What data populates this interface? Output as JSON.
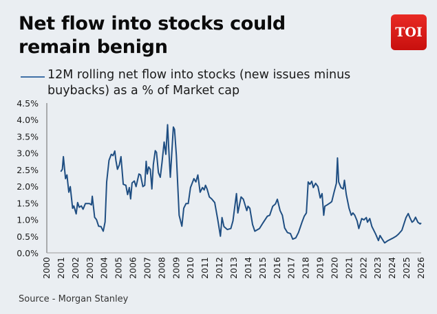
{
  "title": "Net flow into stocks could remain benign",
  "logo": "TOI",
  "source": "Source - Morgan Stanley",
  "colors": {
    "line": "#1f4e82",
    "legend": "#3f6fa6",
    "background": "#eaeef2",
    "logo": "#d9181a"
  },
  "chart_data": {
    "type": "line",
    "title": "Net flow into stocks could remain benign",
    "legend_placement": "top",
    "grid": false,
    "xlim": [
      2000,
      2026
    ],
    "ylim": [
      0,
      4.5
    ],
    "x_ticks": [
      "2000",
      "2001",
      "2002",
      "2003",
      "2004",
      "2005",
      "2006",
      "2007",
      "2008",
      "2009",
      "2010",
      "2011",
      "2012",
      "2013",
      "2014",
      "2015",
      "2016",
      "2017",
      "2018",
      "2019",
      "2020",
      "2021",
      "2022",
      "2023",
      "2024",
      "2025",
      "2026"
    ],
    "y_ticks": [
      "0.0%",
      "0.5%",
      "1.0%",
      "1.5%",
      "2.0%",
      "2.5%",
      "3.0%",
      "3.5%",
      "4.0%",
      "4.5%"
    ],
    "series": [
      {
        "name": "12M rolling net flow into stocks (new issues minus buybacks) as a % of Market cap",
        "x": [
          2000.97,
          2001.08,
          2001.15,
          2001.3,
          2001.4,
          2001.53,
          2001.63,
          2001.79,
          2001.88,
          2002.04,
          2002.14,
          2002.25,
          2002.4,
          2002.52,
          2002.68,
          2002.97,
          2003.1,
          2003.16,
          2003.32,
          2003.45,
          2003.6,
          2003.76,
          2003.92,
          2004.05,
          2004.16,
          2004.32,
          2004.48,
          2004.6,
          2004.72,
          2004.8,
          2004.91,
          2005.04,
          2005.15,
          2005.31,
          2005.49,
          2005.61,
          2005.73,
          2005.82,
          2005.92,
          2006.08,
          2006.2,
          2006.4,
          2006.51,
          2006.67,
          2006.8,
          2006.9,
          2006.98,
          2007.08,
          2007.19,
          2007.3,
          2007.4,
          2007.53,
          2007.62,
          2007.75,
          2007.88,
          2008.0,
          2008.15,
          2008.27,
          2008.39,
          2008.47,
          2008.58,
          2008.7,
          2008.79,
          2008.87,
          2009.0,
          2009.19,
          2009.38,
          2009.51,
          2009.67,
          2009.82,
          2009.98,
          2010.22,
          2010.35,
          2010.49,
          2010.65,
          2010.81,
          2010.93,
          2011.02,
          2011.13,
          2011.29,
          2011.45,
          2011.66,
          2011.87,
          2012.06,
          2012.17,
          2012.3,
          2012.54,
          2012.78,
          2012.93,
          2013.17,
          2013.27,
          2013.49,
          2013.65,
          2013.89,
          2013.97,
          2014.1,
          2014.29,
          2014.45,
          2014.77,
          2015.0,
          2015.32,
          2015.48,
          2015.69,
          2015.88,
          2016.01,
          2016.2,
          2016.36,
          2016.52,
          2016.71,
          2016.92,
          2017.08,
          2017.29,
          2017.48,
          2017.72,
          2017.88,
          2018.03,
          2018.15,
          2018.27,
          2018.4,
          2018.51,
          2018.67,
          2018.83,
          2018.99,
          2019.12,
          2019.23,
          2019.31,
          2019.47,
          2019.71,
          2019.79,
          2019.95,
          2020.11,
          2020.19,
          2020.27,
          2020.43,
          2020.59,
          2020.67,
          2020.8,
          2020.99,
          2021.15,
          2021.26,
          2021.39,
          2021.55,
          2021.67,
          2021.87,
          2022.03,
          2022.19,
          2022.27,
          2022.43,
          2022.58,
          2022.82,
          2023.03,
          2023.14,
          2023.3,
          2023.46,
          2023.7,
          2024.02,
          2024.26,
          2024.42,
          2024.66,
          2024.95,
          2025.1,
          2025.21,
          2025.37,
          2025.48,
          2025.61,
          2025.77,
          2025.93,
          2026.0
        ],
        "y": [
          2.44,
          2.51,
          2.89,
          2.23,
          2.34,
          1.82,
          1.99,
          1.34,
          1.41,
          1.17,
          1.51,
          1.37,
          1.41,
          1.31,
          1.48,
          1.48,
          1.44,
          1.7,
          1.07,
          1.0,
          0.8,
          0.79,
          0.65,
          0.93,
          2.13,
          2.78,
          2.96,
          2.92,
          3.06,
          2.78,
          2.51,
          2.65,
          2.89,
          2.06,
          2.03,
          1.75,
          1.96,
          1.62,
          2.1,
          2.16,
          1.99,
          2.37,
          2.34,
          1.99,
          2.03,
          2.75,
          2.37,
          2.58,
          2.51,
          1.92,
          2.65,
          3.07,
          3.02,
          2.41,
          2.27,
          2.71,
          3.33,
          2.96,
          3.85,
          3.13,
          2.27,
          3.13,
          3.78,
          3.71,
          2.92,
          1.13,
          0.8,
          1.34,
          1.48,
          1.48,
          1.96,
          2.23,
          2.13,
          2.34,
          1.82,
          1.96,
          1.89,
          2.03,
          1.92,
          1.68,
          1.62,
          1.51,
          1.0,
          0.5,
          1.06,
          0.79,
          0.7,
          0.73,
          0.96,
          1.78,
          1.2,
          1.68,
          1.61,
          1.27,
          1.4,
          1.34,
          0.85,
          0.65,
          0.73,
          0.89,
          1.1,
          1.13,
          1.4,
          1.47,
          1.61,
          1.27,
          1.13,
          0.75,
          0.61,
          0.58,
          0.41,
          0.45,
          0.61,
          0.92,
          1.1,
          1.2,
          2.13,
          2.06,
          2.15,
          1.96,
          2.09,
          1.99,
          1.65,
          1.78,
          1.13,
          1.4,
          1.44,
          1.51,
          1.54,
          1.82,
          2.09,
          2.85,
          2.13,
          1.96,
          1.92,
          2.18,
          1.75,
          1.34,
          1.13,
          1.2,
          1.13,
          0.96,
          0.73,
          1.03,
          0.99,
          1.06,
          0.92,
          1.03,
          0.79,
          0.58,
          0.37,
          0.52,
          0.41,
          0.3,
          0.37,
          0.44,
          0.5,
          0.56,
          0.68,
          1.06,
          1.18,
          1.06,
          0.92,
          0.96,
          1.07,
          0.92,
          0.87,
          0.9
        ]
      }
    ]
  }
}
